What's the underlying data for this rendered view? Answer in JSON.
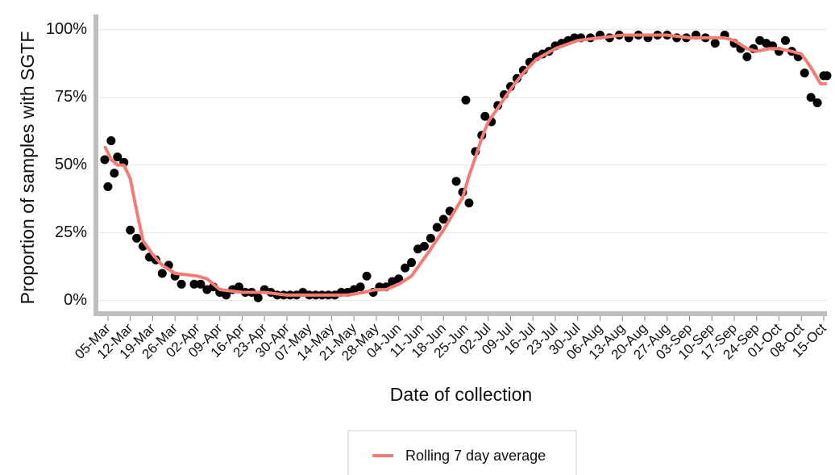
{
  "chart_data": {
    "type": "scatter",
    "y_label": "Proportion of samples with SGTF",
    "x_label": "Date of collection",
    "xlim": [
      "02-Mar",
      "16-Oct"
    ],
    "xticks": [
      "05-Mar",
      "12-Mar",
      "19-Mar",
      "26-Mar",
      "02-Apr",
      "09-Apr",
      "16-Apr",
      "23-Apr",
      "30-Apr",
      "07-May",
      "14-May",
      "21-May",
      "28-May",
      "04-Jun",
      "11-Jun",
      "18-Jun",
      "25-Jun",
      "02-Jul",
      "09-Jul",
      "16-Jul",
      "23-Jul",
      "30-Jul",
      "06-Aug",
      "13-Aug",
      "20-Aug",
      "27-Aug",
      "03-Sep",
      "10-Sep",
      "17-Sep",
      "24-Sep",
      "01-Oct",
      "08-Oct",
      "15-Oct"
    ],
    "ylim": [
      -4,
      105
    ],
    "yticks": [
      {
        "value": 0,
        "label": "0%"
      },
      {
        "value": 25,
        "label": "25%"
      },
      {
        "value": 50,
        "label": "50%"
      },
      {
        "value": 75,
        "label": "75%"
      },
      {
        "value": 100,
        "label": "100%"
      }
    ],
    "grid": true,
    "series": [
      {
        "kind": "points",
        "color": "#000000",
        "x": [
          "04-Mar",
          "05-Mar",
          "06-Mar",
          "07-Mar",
          "08-Mar",
          "10-Mar",
          "12-Mar",
          "14-Mar",
          "16-Mar",
          "18-Mar",
          "20-Mar",
          "22-Mar",
          "24-Mar",
          "26-Mar",
          "28-Mar",
          "01-Apr",
          "03-Apr",
          "05-Apr",
          "07-Apr",
          "09-Apr",
          "11-Apr",
          "13-Apr",
          "15-Apr",
          "17-Apr",
          "19-Apr",
          "21-Apr",
          "23-Apr",
          "25-Apr",
          "27-Apr",
          "29-Apr",
          "01-May",
          "03-May",
          "05-May",
          "07-May",
          "09-May",
          "11-May",
          "13-May",
          "15-May",
          "17-May",
          "19-May",
          "21-May",
          "23-May",
          "25-May",
          "27-May",
          "29-May",
          "31-May",
          "02-Jun",
          "04-Jun",
          "06-Jun",
          "08-Jun",
          "10-Jun",
          "12-Jun",
          "14-Jun",
          "16-Jun",
          "18-Jun",
          "20-Jun",
          "22-Jun",
          "24-Jun",
          "25-Jun",
          "26-Jun",
          "28-Jun",
          "30-Jun",
          "01-Jul",
          "03-Jul",
          "05-Jul",
          "07-Jul",
          "09-Jul",
          "11-Jul",
          "13-Jul",
          "15-Jul",
          "17-Jul",
          "19-Jul",
          "21-Jul",
          "23-Jul",
          "25-Jul",
          "27-Jul",
          "29-Jul",
          "31-Jul",
          "03-Aug",
          "06-Aug",
          "09-Aug",
          "12-Aug",
          "15-Aug",
          "18-Aug",
          "21-Aug",
          "24-Aug",
          "27-Aug",
          "30-Aug",
          "02-Sep",
          "05-Sep",
          "08-Sep",
          "11-Sep",
          "14-Sep",
          "17-Sep",
          "19-Sep",
          "21-Sep",
          "23-Sep",
          "25-Sep",
          "27-Sep",
          "29-Sep",
          "01-Oct",
          "03-Oct",
          "05-Oct",
          "07-Oct",
          "09-Oct",
          "11-Oct",
          "13-Oct",
          "15-Oct",
          "16-Oct"
        ],
        "values": [
          52,
          42,
          59,
          47,
          53,
          51,
          26,
          23,
          20,
          16,
          15,
          10,
          13,
          9,
          6,
          6,
          6,
          4,
          5,
          3,
          2,
          4,
          5,
          3,
          3,
          1,
          4,
          3,
          2,
          2,
          2,
          2,
          3,
          2,
          2,
          2,
          2,
          2,
          3,
          3,
          4,
          5,
          9,
          3,
          5,
          5,
          7,
          8,
          12,
          14,
          19,
          20,
          23,
          27,
          30,
          33,
          44,
          40,
          74,
          36,
          55,
          61,
          68,
          66,
          72,
          76,
          79,
          82,
          85,
          88,
          90,
          91,
          92,
          94,
          95,
          96,
          97,
          97,
          97,
          98,
          97,
          98,
          97,
          98,
          97,
          98,
          98,
          97,
          97,
          98,
          97,
          95,
          98,
          95,
          93,
          90,
          93,
          96,
          95,
          94,
          92,
          96,
          92,
          90,
          84,
          75,
          73,
          83,
          83
        ]
      },
      {
        "kind": "line",
        "name": "Rolling 7 day average",
        "color": "#f47c74",
        "x": [
          "04-Mar",
          "06-Mar",
          "08-Mar",
          "10-Mar",
          "12-Mar",
          "14-Mar",
          "16-Mar",
          "19-Mar",
          "22-Mar",
          "26-Mar",
          "02-Apr",
          "05-Apr",
          "09-Apr",
          "16-Apr",
          "23-Apr",
          "30-Apr",
          "07-May",
          "14-May",
          "19-May",
          "24-May",
          "28-May",
          "31-May",
          "04-Jun",
          "08-Jun",
          "11-Jun",
          "14-Jun",
          "18-Jun",
          "21-Jun",
          "24-Jun",
          "26-Jun",
          "28-Jun",
          "30-Jun",
          "02-Jul",
          "05-Jul",
          "09-Jul",
          "13-Jul",
          "17-Jul",
          "23-Jul",
          "30-Jul",
          "06-Aug",
          "13-Aug",
          "20-Aug",
          "27-Aug",
          "03-Sep",
          "10-Sep",
          "14-Sep",
          "17-Sep",
          "21-Sep",
          "24-Sep",
          "28-Sep",
          "01-Oct",
          "05-Oct",
          "08-Oct",
          "11-Oct",
          "14-Oct",
          "16-Oct"
        ],
        "values": [
          57,
          52,
          50,
          50,
          45,
          33,
          22,
          17,
          13,
          10,
          9,
          8,
          4,
          3,
          3,
          2,
          2,
          2,
          2,
          3,
          4,
          4,
          6,
          9,
          14,
          19,
          26,
          32,
          38,
          46,
          53,
          60,
          66,
          71,
          78,
          84,
          89,
          93,
          96,
          97,
          98,
          98,
          98,
          97,
          97,
          97,
          96,
          93,
          92,
          93,
          93,
          92,
          91,
          86,
          80,
          80
        ]
      }
    ]
  }
}
